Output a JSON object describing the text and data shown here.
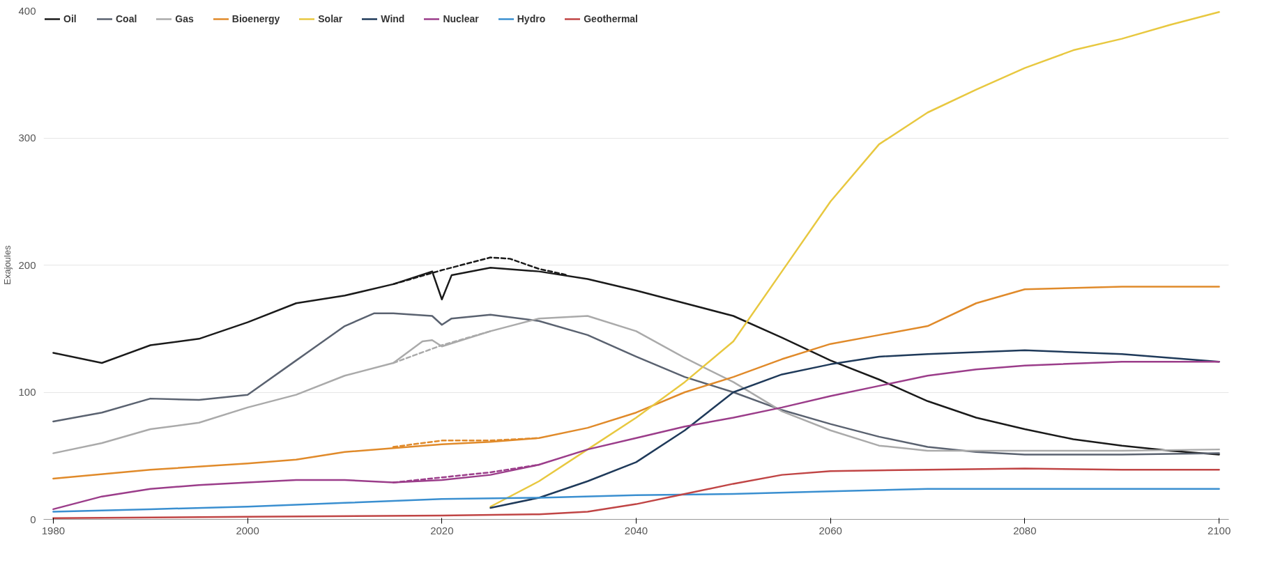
{
  "chart_data": {
    "type": "line",
    "ylabel": "Exajoules",
    "xlim": [
      1979,
      2101
    ],
    "ylim": [
      0,
      400
    ],
    "xticks": [
      1980,
      2000,
      2020,
      2040,
      2060,
      2080,
      2100
    ],
    "yticks": [
      0,
      100,
      200,
      300,
      400
    ],
    "grid": "y",
    "legend": "top left",
    "marker": "none",
    "line_style": "solid",
    "series": [
      {
        "name": "Oil",
        "color": "#1a1a1a",
        "x": [
          1980,
          1985,
          1990,
          1995,
          2000,
          2005,
          2010,
          2015,
          2019,
          2020,
          2021,
          2025,
          2030,
          2035,
          2040,
          2045,
          2050,
          2055,
          2060,
          2065,
          2070,
          2075,
          2080,
          2085,
          2090,
          2095,
          2100
        ],
        "values": [
          131,
          123,
          137,
          142,
          155,
          170,
          176,
          185,
          195,
          173,
          192,
          198,
          195,
          189,
          180,
          170,
          160,
          143,
          125,
          110,
          93,
          80,
          71,
          63,
          58,
          54,
          51
        ]
      },
      {
        "name": "Coal",
        "color": "#5a6270",
        "x": [
          1980,
          1985,
          1990,
          1995,
          2000,
          2005,
          2010,
          2013,
          2015,
          2019,
          2020,
          2021,
          2025,
          2030,
          2035,
          2040,
          2045,
          2050,
          2055,
          2060,
          2065,
          2070,
          2075,
          2080,
          2090,
          2100
        ],
        "values": [
          77,
          84,
          95,
          94,
          98,
          125,
          152,
          162,
          162,
          160,
          153,
          158,
          161,
          156,
          145,
          128,
          112,
          100,
          86,
          75,
          65,
          57,
          53,
          51,
          51,
          52
        ]
      },
      {
        "name": "Gas",
        "color": "#aaaaaa",
        "x": [
          1980,
          1985,
          1990,
          1995,
          2000,
          2005,
          2010,
          2015,
          2018,
          2019,
          2020,
          2025,
          2030,
          2035,
          2040,
          2045,
          2050,
          2055,
          2060,
          2065,
          2070,
          2080,
          2090,
          2100
        ],
        "values": [
          52,
          60,
          71,
          76,
          88,
          98,
          113,
          123,
          140,
          141,
          136,
          148,
          158,
          160,
          148,
          127,
          108,
          85,
          70,
          58,
          54,
          54,
          54,
          55
        ]
      },
      {
        "name": "Bioenergy",
        "color": "#e08a2a",
        "x": [
          1980,
          1990,
          2000,
          2005,
          2010,
          2015,
          2020,
          2025,
          2030,
          2035,
          2040,
          2045,
          2050,
          2055,
          2060,
          2065,
          2070,
          2075,
          2080,
          2090,
          2100
        ],
        "values": [
          32,
          39,
          44,
          47,
          53,
          56,
          59,
          61,
          64,
          72,
          84,
          100,
          112,
          126,
          138,
          145,
          152,
          170,
          181,
          183,
          183
        ]
      },
      {
        "name": "Solar",
        "color": "#e8c840",
        "x": [
          2025,
          2030,
          2035,
          2040,
          2045,
          2050,
          2055,
          2060,
          2065,
          2070,
          2075,
          2080,
          2085,
          2090,
          2095,
          2100
        ],
        "values": [
          10,
          30,
          55,
          80,
          108,
          140,
          195,
          250,
          295,
          320,
          338,
          355,
          369,
          378,
          389,
          399
        ]
      },
      {
        "name": "Wind",
        "color": "#1f3a5a",
        "x": [
          2025,
          2030,
          2035,
          2040,
          2045,
          2050,
          2055,
          2060,
          2065,
          2070,
          2080,
          2090,
          2100
        ],
        "values": [
          9,
          17,
          30,
          45,
          70,
          100,
          114,
          122,
          128,
          130,
          133,
          130,
          124
        ]
      },
      {
        "name": "Nuclear",
        "color": "#9b3d8a",
        "x": [
          1980,
          1985,
          1990,
          1995,
          2000,
          2005,
          2010,
          2015,
          2020,
          2025,
          2030,
          2035,
          2040,
          2045,
          2050,
          2055,
          2060,
          2065,
          2070,
          2075,
          2080,
          2090,
          2100
        ],
        "values": [
          8,
          18,
          24,
          27,
          29,
          31,
          31,
          29,
          31,
          35,
          43,
          55,
          64,
          73,
          80,
          88,
          97,
          105,
          113,
          118,
          121,
          124,
          124
        ]
      },
      {
        "name": "Hydro",
        "color": "#3a8fd0",
        "x": [
          1980,
          1990,
          2000,
          2010,
          2020,
          2030,
          2040,
          2050,
          2060,
          2070,
          2080,
          2090,
          2100
        ],
        "values": [
          6,
          8,
          10,
          13,
          16,
          17,
          19,
          20,
          22,
          24,
          24,
          24,
          24
        ]
      },
      {
        "name": "Geothermal",
        "color": "#c04545",
        "x": [
          1980,
          2000,
          2020,
          2030,
          2035,
          2040,
          2045,
          2050,
          2055,
          2060,
          2070,
          2080,
          2090,
          2100
        ],
        "values": [
          1,
          2,
          3,
          4,
          6,
          12,
          20,
          28,
          35,
          38,
          39,
          40,
          39,
          39
        ]
      },
      {
        "color": "#1a1a1a",
        "line_style": "dashed",
        "x": [
          2015,
          2020,
          2025,
          2027,
          2030,
          2033
        ],
        "values": [
          185,
          196,
          206,
          205,
          197,
          192
        ]
      },
      {
        "color": "#aaaaaa",
        "line_style": "dashed",
        "x": [
          2015,
          2020,
          2025
        ],
        "values": [
          123,
          137,
          148
        ]
      },
      {
        "color": "#e08a2a",
        "line_style": "dashed",
        "x": [
          2015,
          2020,
          2025,
          2030
        ],
        "values": [
          57,
          62,
          62,
          64
        ]
      },
      {
        "color": "#9b3d8a",
        "line_style": "dashed",
        "x": [
          2015,
          2020,
          2025,
          2030
        ],
        "values": [
          29,
          33,
          37,
          43
        ]
      }
    ]
  }
}
